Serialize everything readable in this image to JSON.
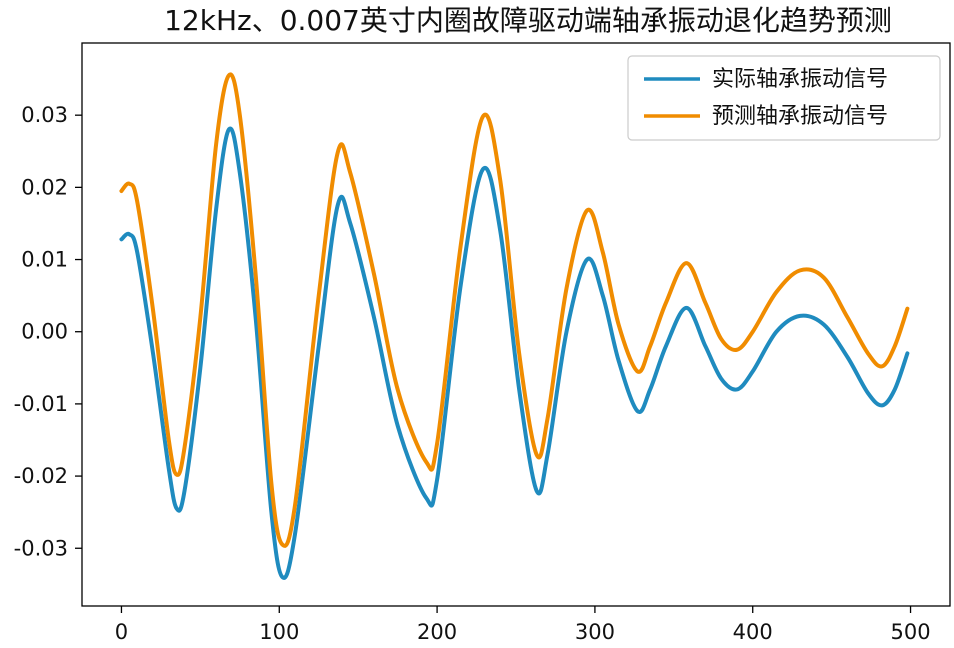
{
  "chart_data": {
    "type": "line",
    "title": "12kHz、0.007英寸内圈故障驱动端轴承振动退化趋势预测",
    "xlabel": "",
    "ylabel": "",
    "xlim": [
      -25,
      525
    ],
    "ylim": [
      -0.038,
      0.04
    ],
    "xticks": [
      0,
      100,
      200,
      300,
      400,
      500
    ],
    "xtick_labels": [
      "0",
      "100",
      "200",
      "300",
      "400",
      "500"
    ],
    "yticks": [
      0.03,
      0.02,
      0.01,
      0.0,
      -0.01,
      -0.02,
      -0.03
    ],
    "ytick_labels": [
      "0.03",
      "0.02",
      "0.01",
      "0.00",
      "-0.01",
      "-0.02",
      "-0.03"
    ],
    "grid": false,
    "legend": "top-right",
    "series": [
      {
        "name": "实际轴承振动信号",
        "color": "#1f8bbf",
        "points": [
          [
            0,
            0.0128
          ],
          [
            5,
            0.0135
          ],
          [
            10,
            0.011
          ],
          [
            20,
            -0.003
          ],
          [
            30,
            -0.019
          ],
          [
            35,
            -0.0245
          ],
          [
            40,
            -0.022
          ],
          [
            50,
            -0.005
          ],
          [
            60,
            0.017
          ],
          [
            68,
            0.028
          ],
          [
            75,
            0.022
          ],
          [
            85,
            0.002
          ],
          [
            95,
            -0.025
          ],
          [
            102,
            -0.034
          ],
          [
            110,
            -0.028
          ],
          [
            125,
            -0.002
          ],
          [
            137,
            0.0175
          ],
          [
            145,
            0.015
          ],
          [
            160,
            0.002
          ],
          [
            175,
            -0.013
          ],
          [
            193,
            -0.023
          ],
          [
            200,
            -0.0205
          ],
          [
            215,
            0.0065
          ],
          [
            229,
            0.0225
          ],
          [
            240,
            0.014
          ],
          [
            252,
            -0.008
          ],
          [
            263,
            -0.022
          ],
          [
            270,
            -0.017
          ],
          [
            282,
            0.0
          ],
          [
            295,
            0.01
          ],
          [
            305,
            0.005
          ],
          [
            315,
            -0.004
          ],
          [
            327,
            -0.011
          ],
          [
            335,
            -0.008
          ],
          [
            345,
            -0.002
          ],
          [
            358,
            0.0033
          ],
          [
            370,
            -0.002
          ],
          [
            380,
            -0.0065
          ],
          [
            390,
            -0.008
          ],
          [
            400,
            -0.0055
          ],
          [
            415,
            0.0
          ],
          [
            430,
            0.0022
          ],
          [
            445,
            0.001
          ],
          [
            460,
            -0.0035
          ],
          [
            473,
            -0.0085
          ],
          [
            482,
            -0.0102
          ],
          [
            490,
            -0.008
          ],
          [
            498,
            -0.003
          ]
        ]
      },
      {
        "name": "预测轴承振动信号",
        "color": "#f08c00",
        "points": [
          [
            0,
            0.0195
          ],
          [
            5,
            0.0205
          ],
          [
            10,
            0.018
          ],
          [
            20,
            0.003
          ],
          [
            30,
            -0.015
          ],
          [
            35,
            -0.0198
          ],
          [
            40,
            -0.016
          ],
          [
            50,
            0.002
          ],
          [
            60,
            0.026
          ],
          [
            68,
            0.0355
          ],
          [
            75,
            0.03
          ],
          [
            85,
            0.008
          ],
          [
            95,
            -0.021
          ],
          [
            102,
            -0.0295
          ],
          [
            110,
            -0.024
          ],
          [
            125,
            0.005
          ],
          [
            137,
            0.0248
          ],
          [
            145,
            0.022
          ],
          [
            160,
            0.008
          ],
          [
            175,
            -0.008
          ],
          [
            193,
            -0.018
          ],
          [
            200,
            -0.0155
          ],
          [
            215,
            0.012
          ],
          [
            229,
            0.0298
          ],
          [
            240,
            0.021
          ],
          [
            252,
            -0.003
          ],
          [
            263,
            -0.017
          ],
          [
            270,
            -0.012
          ],
          [
            282,
            0.006
          ],
          [
            295,
            0.0168
          ],
          [
            305,
            0.011
          ],
          [
            315,
            0.001
          ],
          [
            327,
            -0.0055
          ],
          [
            335,
            -0.002
          ],
          [
            345,
            0.004
          ],
          [
            358,
            0.0095
          ],
          [
            370,
            0.004
          ],
          [
            380,
            -0.001
          ],
          [
            390,
            -0.0025
          ],
          [
            400,
            0.0
          ],
          [
            415,
            0.0055
          ],
          [
            430,
            0.0085
          ],
          [
            445,
            0.0075
          ],
          [
            460,
            0.002
          ],
          [
            473,
            -0.003
          ],
          [
            482,
            -0.0048
          ],
          [
            490,
            -0.002
          ],
          [
            498,
            0.0032
          ]
        ]
      }
    ]
  }
}
